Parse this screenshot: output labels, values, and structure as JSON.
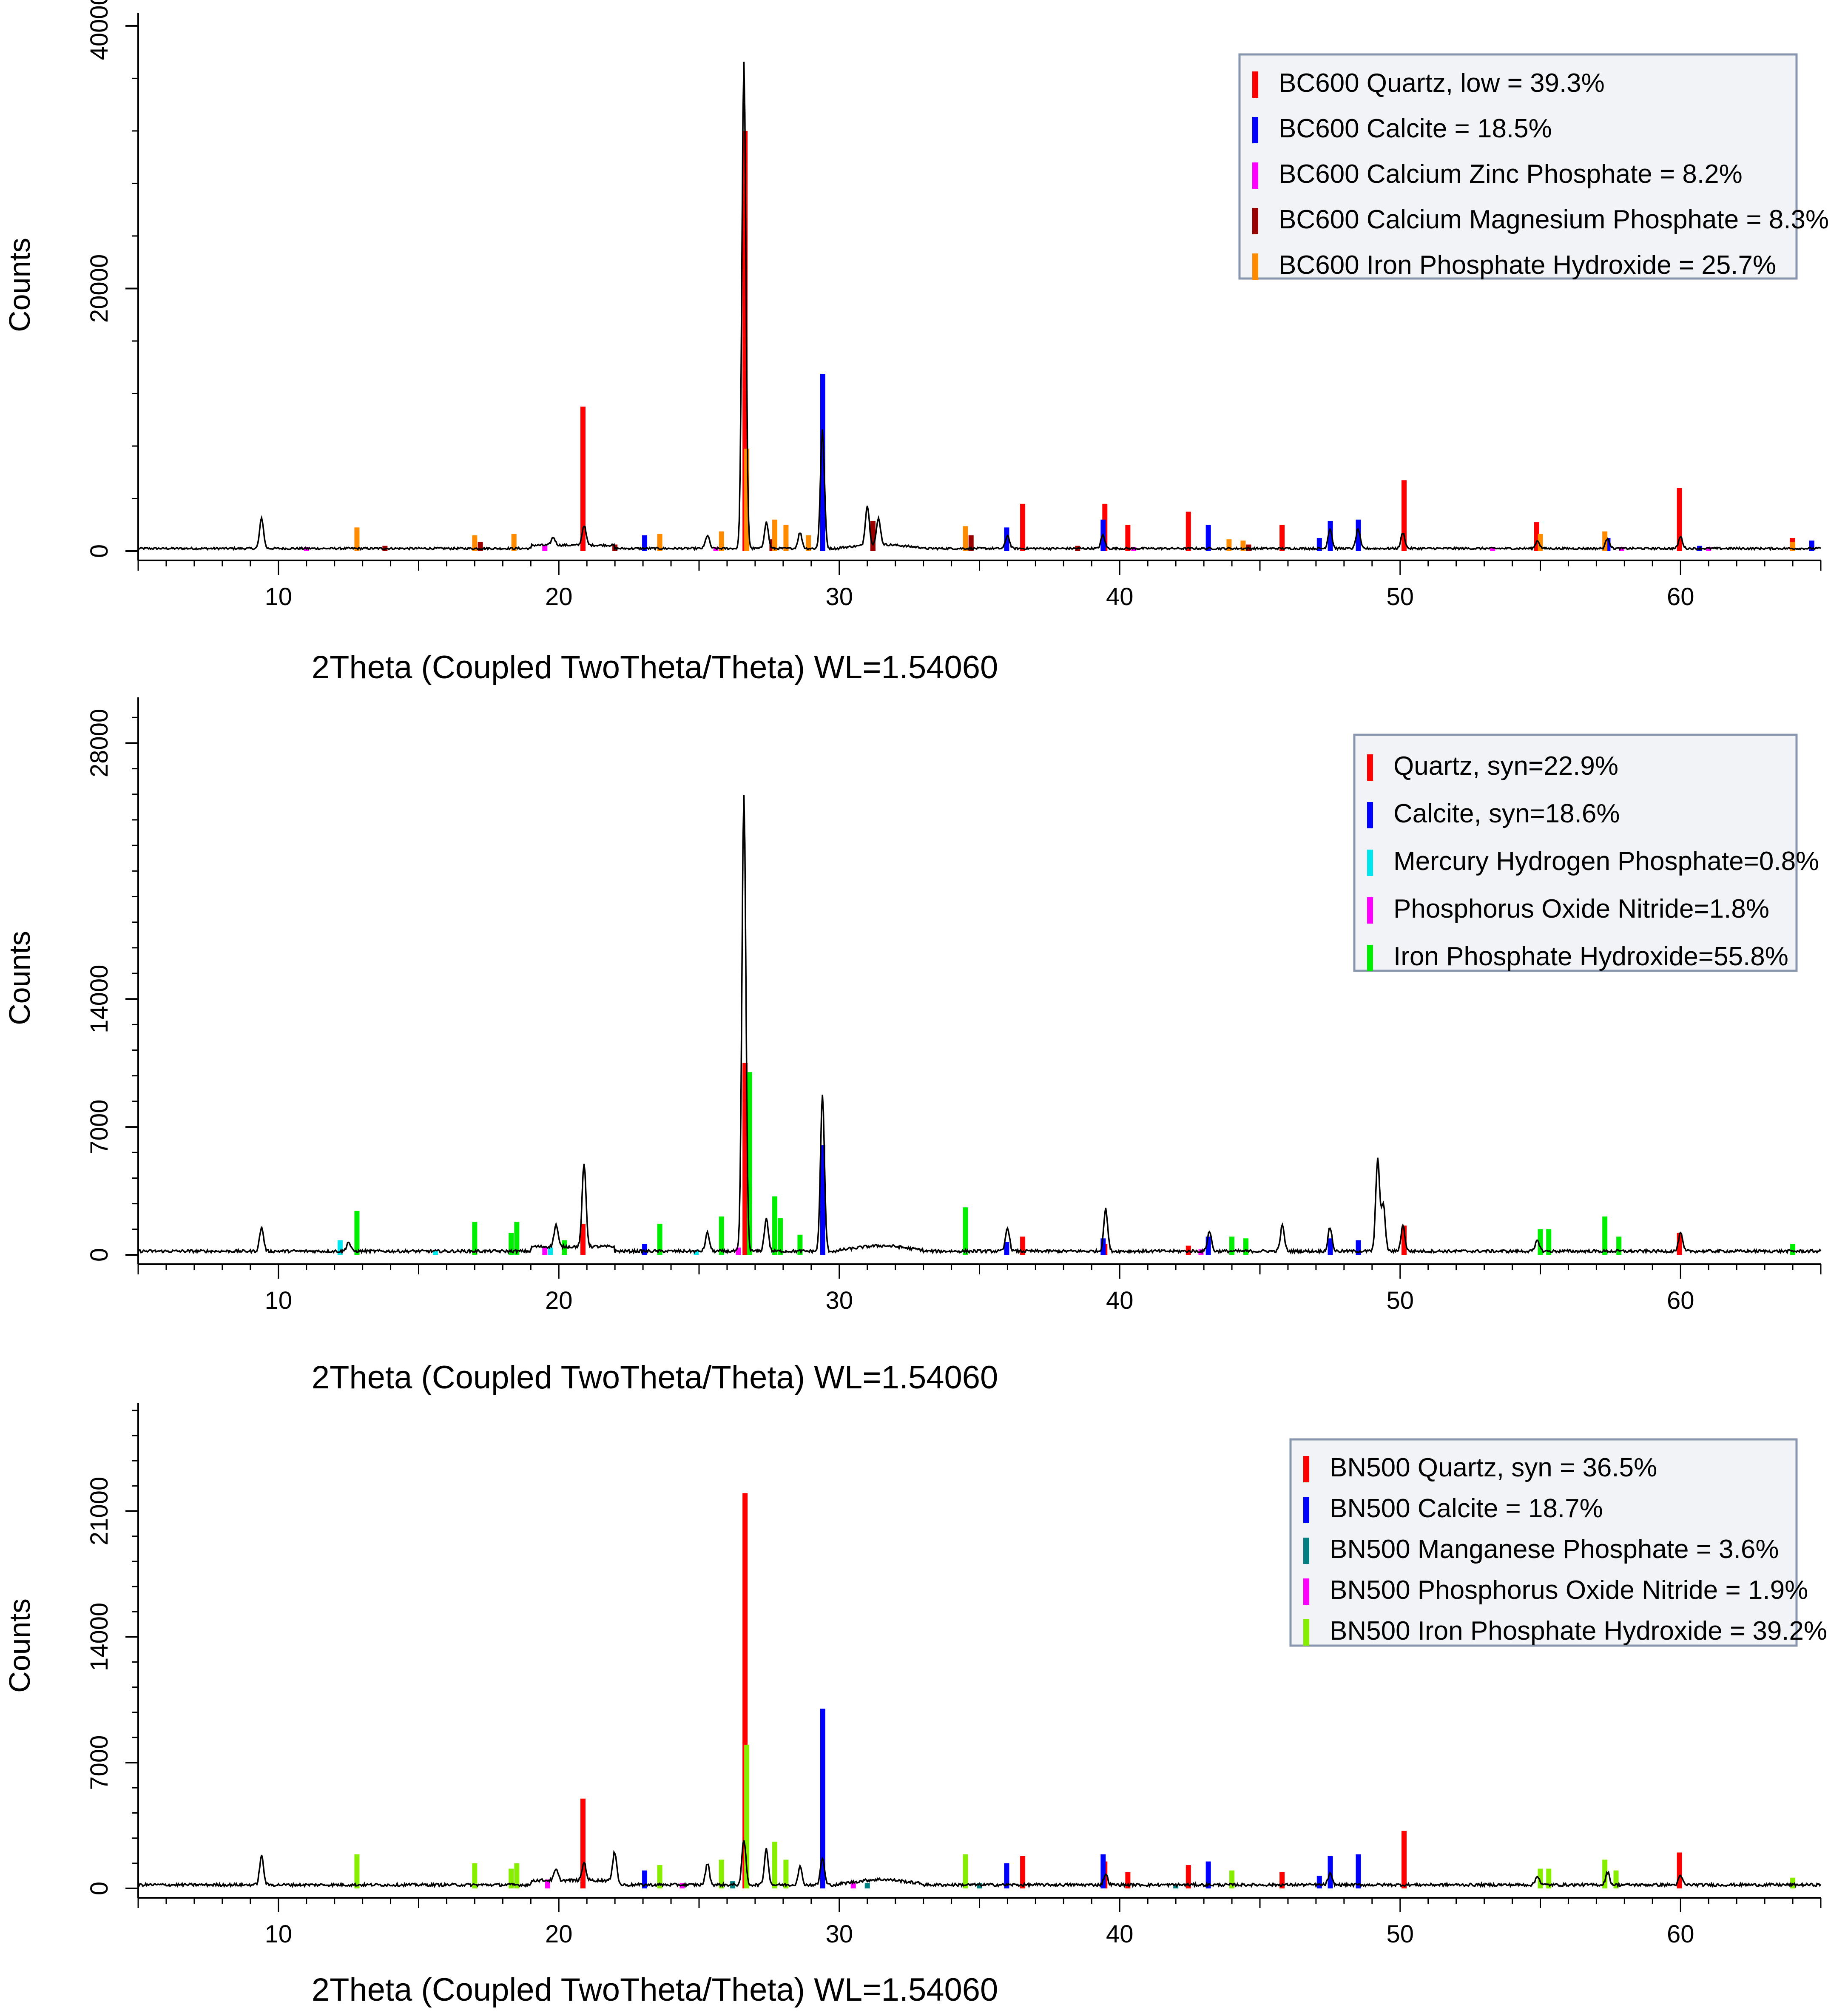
{
  "chart_data": [
    {
      "type": "xrd-pattern",
      "xlabel": "2Theta (Coupled TwoTheta/Theta) WL=1.54060",
      "ylabel": "Counts",
      "xlim": [
        5,
        65
      ],
      "ylim": [
        -1000,
        41000
      ],
      "xticks": [
        10,
        20,
        30,
        40,
        50,
        60
      ],
      "xtick_labels": [
        "10",
        "20",
        "30",
        "40",
        "50",
        "60"
      ],
      "yticks": [
        0,
        20000,
        40000
      ],
      "ytick_labels": [
        "0",
        "20000",
        "40000"
      ],
      "legend_position": "top-right",
      "pattern_color": "#000000",
      "calc_color": "#ff6666",
      "pattern_peaks": [
        {
          "x": 9.4,
          "y": 2300
        },
        {
          "x": 19.8,
          "y": 600
        },
        {
          "x": 20.9,
          "y": 1500
        },
        {
          "x": 25.3,
          "y": 1000
        },
        {
          "x": 26.6,
          "y": 37000
        },
        {
          "x": 27.4,
          "y": 2000
        },
        {
          "x": 28.6,
          "y": 1200
        },
        {
          "x": 29.4,
          "y": 9000
        },
        {
          "x": 31.0,
          "y": 3000
        },
        {
          "x": 31.4,
          "y": 2000
        },
        {
          "x": 36.0,
          "y": 1000
        },
        {
          "x": 39.4,
          "y": 1000
        },
        {
          "x": 47.5,
          "y": 1500
        },
        {
          "x": 48.5,
          "y": 1500
        },
        {
          "x": 50.1,
          "y": 1200
        },
        {
          "x": 54.9,
          "y": 600
        },
        {
          "x": 57.4,
          "y": 800
        },
        {
          "x": 60.0,
          "y": 900
        }
      ],
      "series": [
        {
          "name": "BC600 Quartz, low = 39.3%",
          "color": "#ff0000",
          "x": [
            20.86,
            26.64,
            36.54,
            39.47,
            40.29,
            42.45,
            45.79,
            50.14,
            54.87,
            59.96,
            63.99
          ],
          "values": [
            11000,
            32000,
            3600,
            3600,
            2000,
            3000,
            2000,
            5400,
            2200,
            4800,
            1000
          ]
        },
        {
          "name": "BC600 Calcite = 18.5%",
          "color": "#0000ff",
          "x": [
            23.06,
            29.41,
            35.97,
            39.41,
            43.16,
            47.12,
            47.51,
            48.51,
            57.41,
            60.68,
            64.68
          ],
          "values": [
            1200,
            13500,
            1800,
            2400,
            2000,
            1000,
            2300,
            2400,
            1000,
            400,
            800
          ]
        },
        {
          "name": "BC600 Calcium Zinc Phosphate = 8.2%",
          "color": "#ff00ff",
          "x": [
            11.0,
            19.5,
            25.6,
            31.2,
            40.5,
            53.3,
            57.9,
            61.0
          ],
          "values": [
            300,
            400,
            300,
            300,
            300,
            300,
            300,
            300
          ]
        },
        {
          "name": "BC600 Calcium Magnesium Phosphate = 8.3%",
          "color": "#990000",
          "x": [
            13.8,
            17.2,
            22.0,
            27.6,
            31.2,
            34.7,
            38.5,
            44.6
          ],
          "values": [
            400,
            700,
            500,
            900,
            2300,
            1200,
            400,
            500
          ]
        },
        {
          "name": "BC600 Iron Phosphate Hydroxide = 25.7%",
          "color": "#ff8c00",
          "x": [
            12.8,
            17.0,
            18.4,
            23.6,
            25.8,
            26.7,
            27.7,
            28.1,
            28.9,
            34.5,
            43.9,
            44.4,
            55.0,
            57.3,
            64.0
          ],
          "values": [
            1800,
            1200,
            1300,
            1300,
            1500,
            7800,
            2400,
            2000,
            1200,
            1900,
            900,
            800,
            1300,
            1500,
            700
          ]
        }
      ]
    },
    {
      "type": "xrd-pattern",
      "xlabel": "2Theta (Coupled TwoTheta/Theta) WL=1.54060",
      "ylabel": "Counts",
      "xlim": [
        5,
        65
      ],
      "ylim": [
        -500,
        30500
      ],
      "xticks": [
        10,
        20,
        30,
        40,
        50,
        60
      ],
      "xtick_labels": [
        "10",
        "20",
        "30",
        "40",
        "50",
        "60"
      ],
      "yticks": [
        0,
        7000,
        14000,
        28000
      ],
      "ytick_labels": [
        "0",
        "7000",
        "14000",
        "28000"
      ],
      "legend_position": "top-right",
      "pattern_color": "#000000",
      "calc_color": "#ff6666",
      "pattern_peaks": [
        {
          "x": 9.4,
          "y": 1300
        },
        {
          "x": 12.5,
          "y": 500
        },
        {
          "x": 19.9,
          "y": 1200
        },
        {
          "x": 20.9,
          "y": 4500
        },
        {
          "x": 25.3,
          "y": 1000
        },
        {
          "x": 26.6,
          "y": 25000
        },
        {
          "x": 27.4,
          "y": 1800
        },
        {
          "x": 29.4,
          "y": 8500
        },
        {
          "x": 36.0,
          "y": 1300
        },
        {
          "x": 39.5,
          "y": 2300
        },
        {
          "x": 43.2,
          "y": 1100
        },
        {
          "x": 45.8,
          "y": 1400
        },
        {
          "x": 47.5,
          "y": 1300
        },
        {
          "x": 49.2,
          "y": 5000
        },
        {
          "x": 49.4,
          "y": 2500
        },
        {
          "x": 50.1,
          "y": 1400
        },
        {
          "x": 54.9,
          "y": 600
        },
        {
          "x": 60.0,
          "y": 1000
        }
      ],
      "series": [
        {
          "name": "Quartz, syn=22.9%",
          "color": "#ff0000",
          "x": [
            20.86,
            26.64,
            36.54,
            39.47,
            42.45,
            50.14,
            59.96
          ],
          "values": [
            1700,
            10500,
            1000,
            600,
            500,
            1600,
            1200
          ]
        },
        {
          "name": "Calcite, syn=18.6%",
          "color": "#0000ff",
          "x": [
            23.06,
            29.41,
            35.97,
            39.41,
            43.16,
            47.51,
            48.51
          ],
          "values": [
            600,
            6000,
            700,
            900,
            1000,
            900,
            800
          ]
        },
        {
          "name": "Mercury Hydrogen Phosphate=0.8%",
          "color": "#00e5ee",
          "x": [
            12.2,
            15.6,
            19.7,
            24.9
          ],
          "values": [
            800,
            200,
            400,
            200
          ]
        },
        {
          "name": "Phosphorus Oxide Nitride=1.8%",
          "color": "#ff00ff",
          "x": [
            19.5,
            26.4,
            42.9
          ],
          "values": [
            400,
            400,
            300
          ]
        },
        {
          "name": "Iron Phosphate Hydroxide=55.8%",
          "color": "#00ee00",
          "x": [
            12.8,
            17.0,
            18.3,
            18.5,
            20.2,
            23.6,
            25.8,
            26.8,
            27.7,
            27.9,
            28.6,
            34.5,
            44.0,
            44.5,
            55.0,
            55.3,
            57.3,
            57.8,
            64.0
          ],
          "values": [
            2400,
            1800,
            1200,
            1800,
            800,
            1700,
            2100,
            10000,
            3200,
            2000,
            1100,
            2600,
            1000,
            900,
            1400,
            1400,
            2100,
            1000,
            600
          ]
        }
      ]
    },
    {
      "type": "xrd-pattern",
      "xlabel": "2Theta (Coupled TwoTheta/Theta) WL=1.54060",
      "ylabel": "Counts",
      "xlim": [
        5,
        65
      ],
      "ylim": [
        -500,
        27000
      ],
      "xticks": [
        10,
        20,
        30,
        40,
        50,
        60
      ],
      "xtick_labels": [
        "10",
        "20",
        "30",
        "40",
        "50",
        "60"
      ],
      "yticks": [
        0,
        7000,
        14000,
        21000
      ],
      "ytick_labels": [
        "0",
        "7000",
        "14000",
        "21000"
      ],
      "legend_position": "top-right",
      "pattern_color": "#000000",
      "calc_color": "#ff6666",
      "pattern_peaks": [
        {
          "x": 9.4,
          "y": 1600
        },
        {
          "x": 19.9,
          "y": 600
        },
        {
          "x": 20.9,
          "y": 1000
        },
        {
          "x": 22.0,
          "y": 1800
        },
        {
          "x": 25.3,
          "y": 1200
        },
        {
          "x": 26.6,
          "y": 2500
        },
        {
          "x": 27.4,
          "y": 2000
        },
        {
          "x": 28.6,
          "y": 1000
        },
        {
          "x": 29.4,
          "y": 1500
        },
        {
          "x": 39.5,
          "y": 600
        },
        {
          "x": 47.5,
          "y": 600
        },
        {
          "x": 54.9,
          "y": 500
        },
        {
          "x": 57.4,
          "y": 700
        },
        {
          "x": 60.0,
          "y": 500
        }
      ],
      "series": [
        {
          "name": "BN500 Quartz, syn = 36.5%",
          "color": "#ff0000",
          "x": [
            20.86,
            26.64,
            36.54,
            39.47,
            40.29,
            42.45,
            45.79,
            50.14,
            59.96
          ],
          "values": [
            5000,
            22000,
            1800,
            1500,
            900,
            1300,
            900,
            3200,
            2000
          ]
        },
        {
          "name": "BN500 Calcite = 18.7%",
          "color": "#0000ff",
          "x": [
            23.06,
            29.41,
            35.97,
            39.41,
            43.16,
            47.12,
            47.51,
            48.51
          ],
          "values": [
            1000,
            10000,
            1400,
            1900,
            1500,
            700,
            1800,
            1900
          ]
        },
        {
          "name": "BN500 Manganese Phosphate = 3.6%",
          "color": "#008080",
          "x": [
            26.2,
            31.0,
            35.0,
            42.0
          ],
          "values": [
            400,
            300,
            300,
            200
          ]
        },
        {
          "name": "BN500 Phosphorus Oxide Nitride = 1.9%",
          "color": "#ff00ff",
          "x": [
            19.6,
            24.4,
            30.5
          ],
          "values": [
            500,
            300,
            300
          ]
        },
        {
          "name": "BN500 Iron Phosphate Hydroxide = 39.2%",
          "color": "#88ee00",
          "x": [
            12.8,
            17.0,
            18.3,
            18.5,
            23.6,
            25.8,
            26.7,
            27.7,
            28.1,
            34.5,
            44.0,
            55.0,
            55.3,
            57.3,
            57.7,
            64.0
          ],
          "values": [
            1900,
            1400,
            1100,
            1400,
            1300,
            1600,
            8000,
            2600,
            1600,
            1900,
            1000,
            1100,
            1100,
            1600,
            1000,
            600
          ]
        }
      ]
    }
  ]
}
